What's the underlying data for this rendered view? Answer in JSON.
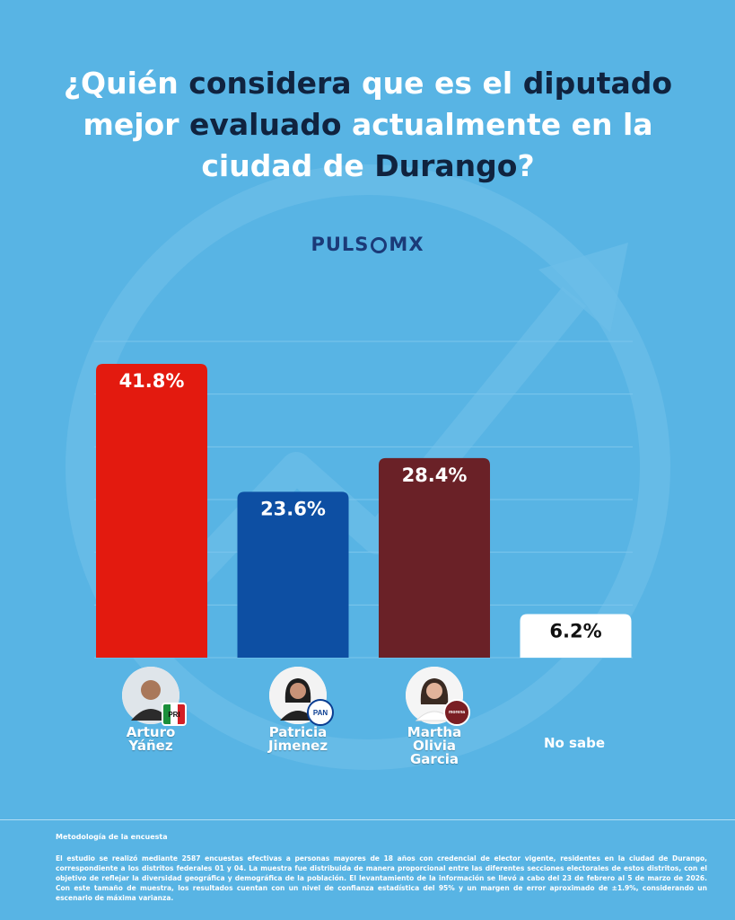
{
  "title": {
    "parts": [
      {
        "text": "¿Quién ",
        "style": "white"
      },
      {
        "text": "considera",
        "style": "dark"
      },
      {
        "text": " que es el ",
        "style": "white"
      },
      {
        "text": "diputado",
        "style": "dark"
      },
      {
        "text": " mejor ",
        "style": "white"
      },
      {
        "text": "evaluado",
        "style": "dark"
      },
      {
        "text": " actualmente en la ciudad de ",
        "style": "white"
      },
      {
        "text": "Durango",
        "style": "dark"
      },
      {
        "text": "?",
        "style": "white"
      }
    ]
  },
  "brand": {
    "left": "PULS",
    "right": "MX"
  },
  "chart_data": {
    "type": "bar",
    "categories": [
      "Arturo Yáñez",
      "Patricia Jimenez",
      "Martha Olivia Garcia",
      "No sabe"
    ],
    "values": [
      41.8,
      23.6,
      28.4,
      6.2
    ],
    "value_labels": [
      "41.8%",
      "23.6%",
      "28.4%",
      "6.2%"
    ],
    "colors": [
      "#e31a0f",
      "#0d4fa3",
      "#6a2127",
      "#ffffff"
    ],
    "label_colors": [
      "#ffffff",
      "#ffffff",
      "#ffffff",
      "#111111"
    ],
    "ylim": [
      0,
      45
    ],
    "grid": true
  },
  "candidates": [
    {
      "name_lines": [
        "Arturo",
        "Yáñez"
      ],
      "party": "PRI",
      "party_icon": "pri-logo-icon"
    },
    {
      "name_lines": [
        "Patricia",
        "Jimenez"
      ],
      "party": "PAN",
      "party_icon": "pan-logo-icon"
    },
    {
      "name_lines": [
        "Martha",
        "Olivia",
        "Garcia"
      ],
      "party": "morena",
      "party_icon": "morena-logo-icon"
    }
  ],
  "no_sabe_label": "No sabe",
  "methodology": {
    "title": "Metodología de la encuesta",
    "text": "El estudio se realizó mediante 2587 encuestas efectivas a personas mayores de 18 años con credencial de elector vigente, residentes en la ciudad de Durango, correspondiente a los distritos federales 01 y 04. La muestra fue distribuida de manera proporcional entre las diferentes secciones electorales de estos distritos, con el objetivo de reflejar la diversidad geográfica y demográfica de la población. El levantamiento de la información se llevó a cabo del 23 de febrero al 5 de marzo de 2026. Con este tamaño de muestra, los resultados cuentan con un nivel de confianza estadística del 95% y un margen de error aproximado de ±1.9%, considerando un escenario de máxima varianza."
  }
}
